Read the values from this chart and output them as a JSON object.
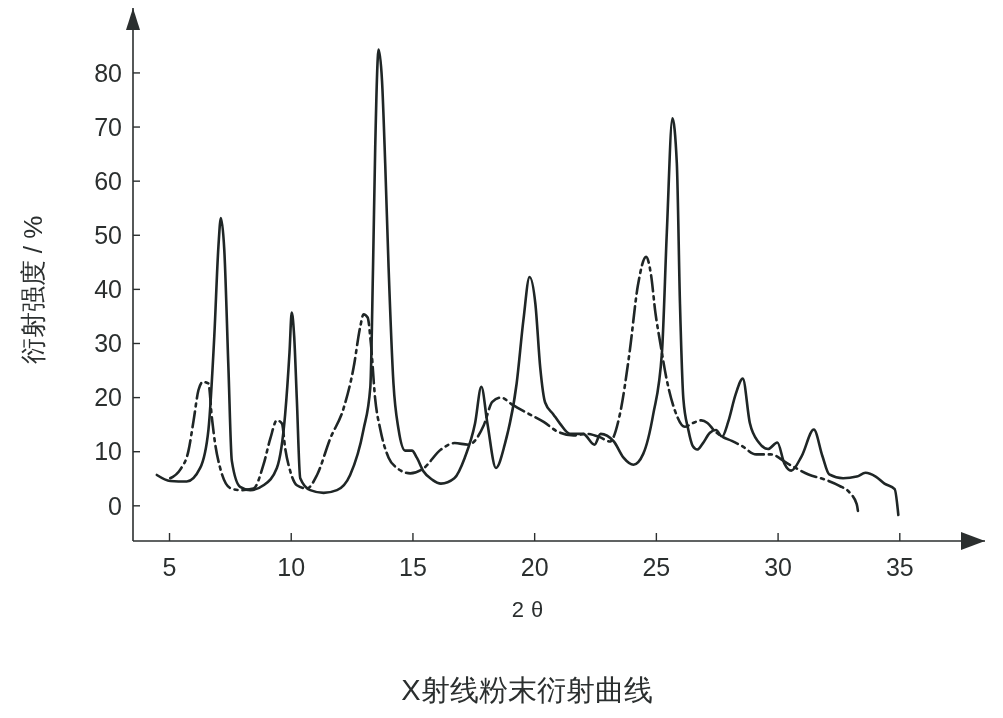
{
  "chart_data": {
    "type": "line",
    "title": "X射线粉末衍射曲线",
    "xlabel": "2θ",
    "ylabel": "衍射强度 / %",
    "xlim": [
      3.5,
      38.5
    ],
    "xticks": [
      5,
      10,
      15,
      20,
      25,
      30,
      35
    ],
    "ylim": [
      -6.5,
      92
    ],
    "yticks": [
      0,
      10,
      20,
      30,
      40,
      50,
      60,
      70,
      80
    ],
    "series": [
      {
        "color": "#1f2626",
        "line_style": "solid",
        "x": [
          4.48,
          5.03,
          5.71,
          6.26,
          6.6,
          6.84,
          7.01,
          7.11,
          7.25,
          7.42,
          7.56,
          7.9,
          8.32,
          8.86,
          9.41,
          9.75,
          9.93,
          10.02,
          10.12,
          10.23,
          10.37,
          10.78,
          11.33,
          11.88,
          12.42,
          12.97,
          13.25,
          13.36,
          13.45,
          13.59,
          13.73,
          13.86,
          14.0,
          14.2,
          14.41,
          14.68,
          14.96,
          15.16,
          15.43,
          15.8,
          16.15,
          16.7,
          17.13,
          17.55,
          17.81,
          18.06,
          18.41,
          18.77,
          19.26,
          19.54,
          19.79,
          20.03,
          20.23,
          20.43,
          20.77,
          21.04,
          21.45,
          21.99,
          22.46,
          22.71,
          23.25,
          23.65,
          24.06,
          24.46,
          24.87,
          25.23,
          25.43,
          25.66,
          25.84,
          25.97,
          26.11,
          26.31,
          26.5,
          26.68,
          26.9,
          27.2,
          27.45,
          27.7,
          27.95,
          28.25,
          28.55,
          28.84,
          29.21,
          29.59,
          29.97,
          30.26,
          30.54,
          30.97,
          31.47,
          31.82,
          32.1,
          32.67,
          33.23,
          33.59,
          34.01,
          34.37,
          34.79,
          34.94
        ],
        "values": [
          5.7,
          4.6,
          4.5,
          7.0,
          14.1,
          31.4,
          48,
          53.2,
          47.3,
          25.5,
          8.3,
          3.5,
          2.9,
          3.8,
          7.0,
          16.9,
          28.4,
          35.7,
          31.4,
          19.7,
          5.1,
          2.9,
          2.4,
          2.9,
          5.7,
          14.1,
          22.0,
          44,
          66.2,
          84.3,
          78.5,
          63.3,
          44,
          22.6,
          14.1,
          10.2,
          10.2,
          8.9,
          6.4,
          4.8,
          4.1,
          5.1,
          8.9,
          15.2,
          22.0,
          15.2,
          7.0,
          11.3,
          22.6,
          34.4,
          42.3,
          37.3,
          25.5,
          19.1,
          16.9,
          15.2,
          13.3,
          13.3,
          11.3,
          13.3,
          11.9,
          8.9,
          7.6,
          9.6,
          16.9,
          28.4,
          50.6,
          71.6,
          63.3,
          37.3,
          19.7,
          14.1,
          11.0,
          10.4,
          11.5,
          13.5,
          14.0,
          12.8,
          15.5,
          20.5,
          23.5,
          15.3,
          11.7,
          10.5,
          11.7,
          7.8,
          6.5,
          9.2,
          14.1,
          9.2,
          5.8,
          5.1,
          5.4,
          6.1,
          5.4,
          4.1,
          3.1,
          -1.7
        ]
      },
      {
        "color": "#1f2626",
        "line_style": "dashdot",
        "x": [
          5.03,
          5.44,
          5.78,
          5.99,
          6.19,
          6.37,
          6.6,
          6.74,
          6.88,
          7.08,
          7.49,
          7.9,
          8.45,
          8.86,
          9.14,
          9.41,
          9.62,
          9.75,
          9.96,
          10.23,
          10.64,
          11.06,
          11.6,
          12.15,
          12.56,
          12.84,
          12.97,
          13.14,
          13.27,
          13.45,
          13.66,
          14.0,
          14.34,
          14.89,
          15.4,
          16.15,
          16.71,
          17.28,
          17.91,
          18.26,
          18.61,
          19.11,
          19.67,
          20.37,
          20.91,
          21.6,
          22.14,
          22.68,
          23.09,
          23.5,
          23.9,
          24.24,
          24.58,
          24.78,
          24.96,
          25.16,
          25.43,
          25.77,
          26.17,
          26.5,
          26.85,
          27.1,
          27.4,
          27.7,
          28.1,
          28.5,
          29.1,
          29.7,
          30.4,
          31.25,
          31.96,
          32.52,
          32.95,
          33.23,
          33.3
        ],
        "values": [
          5.1,
          6.7,
          10.2,
          15.8,
          21.4,
          22.9,
          22.6,
          16.3,
          11.3,
          7.0,
          3.3,
          2.9,
          3.2,
          7.6,
          12.4,
          15.8,
          15.2,
          10.7,
          6.4,
          3.8,
          3.2,
          5.7,
          12.4,
          18.0,
          25.5,
          33.2,
          35.4,
          34.8,
          30.1,
          19.7,
          14.1,
          8.9,
          7.0,
          6.0,
          6.8,
          10.4,
          11.6,
          11.3,
          14.9,
          19.2,
          20.0,
          18.6,
          17.2,
          15.5,
          13.8,
          13.0,
          13.3,
          12.7,
          11.9,
          16.9,
          28.4,
          40.7,
          46.0,
          42.7,
          35.7,
          30.1,
          23.2,
          17.5,
          14.6,
          15.3,
          15.8,
          15.3,
          13.8,
          12.8,
          12.0,
          11.1,
          9.5,
          9.5,
          7.8,
          5.8,
          4.8,
          3.7,
          2.4,
          0.3,
          -1.6
        ]
      }
    ]
  }
}
